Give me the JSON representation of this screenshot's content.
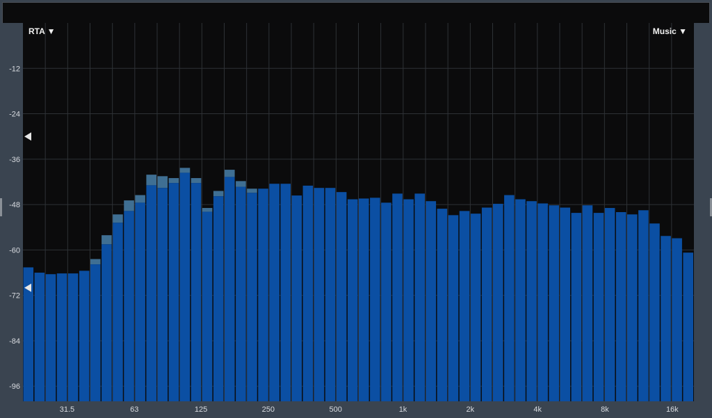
{
  "analyzer": {
    "mode_menu": {
      "label": "RTA",
      "icon": "triangle-down-icon"
    },
    "preset_menu": {
      "label": "Music",
      "icon": "triangle-down-icon"
    },
    "markers_db": [
      -30,
      -70
    ],
    "colors": {
      "bar": "#0b4fa3",
      "peak": "#3f6f93",
      "background": "#0b0b0c",
      "panel": "#3a4450",
      "grid": "#2e3236"
    }
  },
  "chart_data": {
    "type": "bar",
    "title": "",
    "xlabel": "",
    "ylabel": "",
    "x_scale": "log",
    "x_range_hz": [
      20,
      20000
    ],
    "ylim": [
      -100,
      0
    ],
    "grid": true,
    "y_ticks": [
      "-12",
      "-24",
      "-36",
      "-48",
      "-60",
      "-72",
      "-84",
      "-96"
    ],
    "y_tick_values": [
      -12,
      -24,
      -36,
      -48,
      -60,
      -72,
      -84,
      -96
    ],
    "x_ticks": [
      "31.5",
      "63",
      "125",
      "250",
      "500",
      "1k",
      "2k",
      "4k",
      "8k",
      "16k"
    ],
    "x_tick_values": [
      31.5,
      63,
      125,
      250,
      500,
      1000,
      2000,
      4000,
      8000,
      16000
    ],
    "bands_per_octave": 6,
    "values": [
      -64.6,
      -66.0,
      -66.4,
      -66.2,
      -66.2,
      -65.5,
      -63.8,
      -58.5,
      -52.8,
      -49.7,
      -47.5,
      -42.9,
      -43.6,
      -42.3,
      -39.6,
      -42.3,
      -49.9,
      -45.8,
      -40.7,
      -43.3,
      -44.9,
      -43.8,
      -42.5,
      -42.5,
      -45.6,
      -43.0,
      -43.6,
      -43.6,
      -44.7,
      -46.6,
      -46.4,
      -46.2,
      -47.5,
      -45.1,
      -46.6,
      -45.1,
      -47.1,
      -49.1,
      -50.8,
      -49.7,
      -50.4,
      -48.8,
      -47.8,
      -45.5,
      -46.6,
      -47.1,
      -47.7,
      -48.2,
      -48.8,
      -50.2,
      -48.2,
      -50.2,
      -48.9,
      -50.0,
      -50.6,
      -49.5,
      -53.0,
      -56.3,
      -56.9,
      -60.7
    ],
    "peaks": [
      -64.6,
      -66.0,
      -66.4,
      -66.2,
      -66.2,
      -65.5,
      -62.4,
      -56.1,
      -50.6,
      -46.9,
      -45.5,
      -40.1,
      -40.5,
      -41.0,
      -38.3,
      -41.0,
      -48.9,
      -44.4,
      -38.8,
      -41.8,
      -43.8,
      -43.8,
      -42.5,
      -42.5,
      -45.6,
      -43.0,
      -43.6,
      -43.6,
      -44.7,
      -46.6,
      -46.4,
      -46.2,
      -47.5,
      -45.1,
      -46.6,
      -45.1,
      -47.1,
      -49.1,
      -50.8,
      -49.7,
      -50.4,
      -48.8,
      -47.8,
      -45.5,
      -46.6,
      -47.1,
      -47.7,
      -48.2,
      -48.8,
      -50.2,
      -48.2,
      -50.2,
      -48.9,
      -50.0,
      -50.6,
      -49.5,
      -53.0,
      -56.3,
      -56.9,
      -60.7
    ]
  }
}
